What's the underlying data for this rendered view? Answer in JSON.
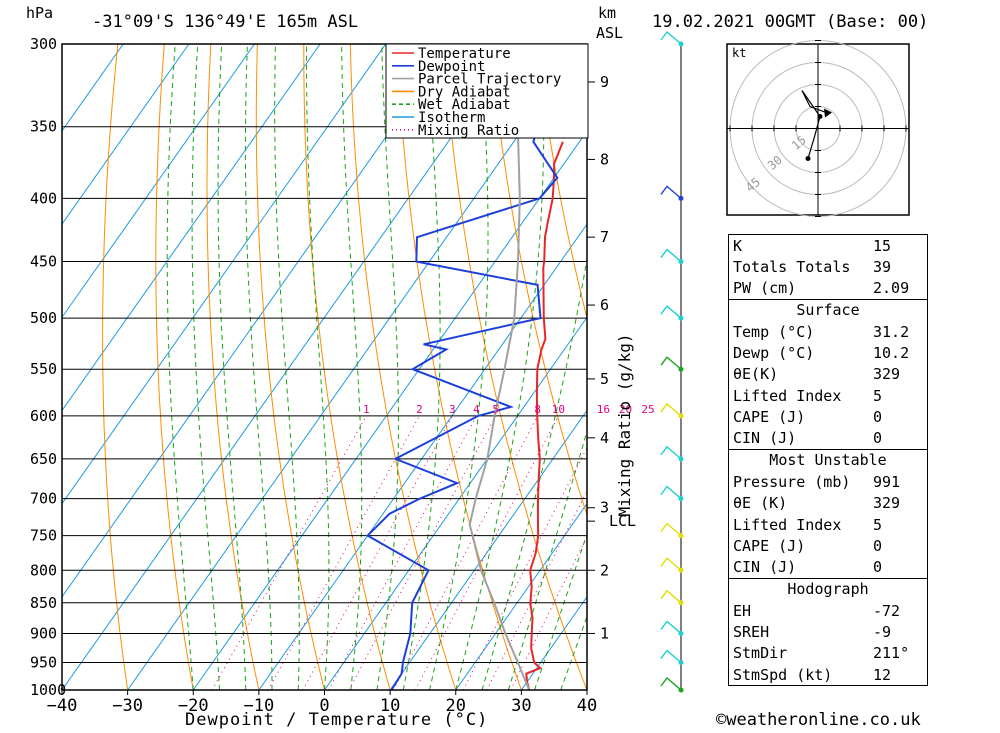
{
  "header": {
    "hpa_label": "hPa",
    "location": "-31°09'S  136°49'E  165m  ASL",
    "km_label": "km",
    "asl_label": "ASL",
    "datetime": "19.02.2021  00GMT  (Base: 00)"
  },
  "footer": {
    "copyright": "©weatheronline.co.uk"
  },
  "chart_data": {
    "type": "line",
    "title": "",
    "xlabel": "Dewpoint / Temperature (°C)",
    "ylabel": "hPa",
    "mixing_ratio_axis_label": "Mixing Ratio (g/kg)",
    "pressure_levels": [
      300,
      350,
      400,
      450,
      500,
      550,
      600,
      650,
      700,
      750,
      800,
      850,
      900,
      950,
      1000
    ],
    "pressure_tick_labels": [
      "300",
      "350",
      "400",
      "450",
      "500",
      "550",
      "600",
      "650",
      "700",
      "750",
      "800",
      "850",
      "900",
      "950",
      "1000"
    ],
    "temp_ticks": [
      -40,
      -30,
      -20,
      -10,
      0,
      10,
      20,
      30,
      40
    ],
    "temp_tick_labels": [
      "−40",
      "−30",
      "−20",
      "−10",
      "0",
      "10",
      "20",
      "30",
      "40"
    ],
    "xlim": [
      -40,
      40
    ],
    "ylim": [
      1000,
      300
    ],
    "skew_deg_per_log": 70,
    "km_ticks": [
      {
        "label": "1",
        "p": 900
      },
      {
        "label": "2",
        "p": 800
      },
      {
        "label": "3",
        "p": 712
      },
      {
        "label": "4",
        "p": 625
      },
      {
        "label": "5",
        "p": 560
      },
      {
        "label": "6",
        "p": 488
      },
      {
        "label": "7",
        "p": 430
      },
      {
        "label": "8",
        "p": 372
      },
      {
        "label": "9",
        "p": 322
      }
    ],
    "lcl": {
      "label": "LCL",
      "p": 730
    },
    "mixing_ratio_labels": [
      "1",
      "2",
      "3",
      "4",
      "5",
      "8",
      "10",
      "16",
      "20",
      "25"
    ],
    "mixing_ratio_values": [
      1,
      2,
      3,
      4,
      5,
      8,
      10,
      16,
      20,
      25
    ],
    "legend": [
      {
        "name": "Temperature",
        "color": "#e8262a",
        "style": "solid"
      },
      {
        "name": "Dewpoint",
        "color": "#1c3fdb",
        "style": "solid"
      },
      {
        "name": "Parcel Trajectory",
        "color": "#a0a0a0",
        "style": "solid"
      },
      {
        "name": "Dry Adiabat",
        "color": "#ff8c00",
        "style": "solid"
      },
      {
        "name": "Wet Adiabat",
        "color": "#1aa31a",
        "style": "dashed"
      },
      {
        "name": "Isotherm",
        "color": "#1e9be0",
        "style": "solid"
      },
      {
        "name": "Mixing Ratio",
        "color": "#e0007a",
        "style": "dotted"
      }
    ],
    "series": [
      {
        "name": "Temperature",
        "color": "#e8262a",
        "points": [
          [
            1000,
            31.2
          ],
          [
            985,
            30
          ],
          [
            970,
            29
          ],
          [
            960,
            30.5
          ],
          [
            950,
            29
          ],
          [
            925,
            27
          ],
          [
            900,
            25.5
          ],
          [
            875,
            24
          ],
          [
            850,
            22
          ],
          [
            825,
            20.5
          ],
          [
            800,
            18.5
          ],
          [
            775,
            17.5
          ],
          [
            750,
            16
          ],
          [
            725,
            14
          ],
          [
            700,
            12
          ],
          [
            675,
            10
          ],
          [
            650,
            8
          ],
          [
            625,
            5.5
          ],
          [
            600,
            3
          ],
          [
            575,
            0.5
          ],
          [
            550,
            -2
          ],
          [
            530,
            -3.5
          ],
          [
            520,
            -4
          ],
          [
            500,
            -6.5
          ],
          [
            475,
            -9.5
          ],
          [
            455,
            -12
          ],
          [
            450,
            -12.5
          ],
          [
            430,
            -15
          ],
          [
            420,
            -16
          ],
          [
            400,
            -18
          ],
          [
            385,
            -20
          ],
          [
            375,
            -21.5
          ],
          [
            360,
            -22.5
          ]
        ]
      },
      {
        "name": "Dewpoint",
        "color": "#1c3fdb",
        "points": [
          [
            1000,
            10.2
          ],
          [
            970,
            10
          ],
          [
            960,
            9.5
          ],
          [
            950,
            9
          ],
          [
            900,
            7
          ],
          [
            850,
            4
          ],
          [
            800,
            3
          ],
          [
            750,
            -10
          ],
          [
            720,
            -9
          ],
          [
            700,
            -6
          ],
          [
            680,
            -2
          ],
          [
            650,
            -14
          ],
          [
            600,
            -6
          ],
          [
            590,
            -2
          ],
          [
            550,
            -21
          ],
          [
            530,
            -18
          ],
          [
            525,
            -22
          ],
          [
            500,
            -7
          ],
          [
            470,
            -11
          ],
          [
            450,
            -32
          ],
          [
            430,
            -34.5
          ],
          [
            400,
            -20
          ],
          [
            385,
            -19.5
          ],
          [
            360,
            -27
          ],
          [
            340,
            -29
          ],
          [
            320,
            -30
          ],
          [
            300,
            -34
          ]
        ]
      },
      {
        "name": "Parcel Trajectory",
        "color": "#a0a0a0",
        "points": [
          [
            1000,
            31.2
          ],
          [
            950,
            26.5
          ],
          [
            900,
            21.5
          ],
          [
            850,
            16.5
          ],
          [
            800,
            11
          ],
          [
            750,
            6
          ],
          [
            735,
            4.4
          ],
          [
            700,
            2.5
          ],
          [
            650,
            0
          ],
          [
            600,
            -3.5
          ],
          [
            550,
            -7
          ],
          [
            500,
            -11
          ],
          [
            450,
            -16.5
          ],
          [
            400,
            -23
          ],
          [
            350,
            -31
          ],
          [
            300,
            -40
          ]
        ]
      }
    ]
  },
  "wind_profile": {
    "color_high": "#1ad1d1",
    "color_low": "#e0e000",
    "barbs": [
      {
        "p": 300,
        "color": "#1ad1d1"
      },
      {
        "p": 400,
        "color": "#1c3fdb"
      },
      {
        "p": 450,
        "color": "#1ad1d1"
      },
      {
        "p": 500,
        "color": "#1ad1d1"
      },
      {
        "p": 550,
        "color": "#1aa31a"
      },
      {
        "p": 600,
        "color": "#e0e000"
      },
      {
        "p": 650,
        "color": "#1ad1d1"
      },
      {
        "p": 700,
        "color": "#1ad1d1"
      },
      {
        "p": 750,
        "color": "#e0e000"
      },
      {
        "p": 800,
        "color": "#e0e000"
      },
      {
        "p": 850,
        "color": "#e0e000"
      },
      {
        "p": 900,
        "color": "#1ad1d1"
      },
      {
        "p": 950,
        "color": "#1ad1d1"
      },
      {
        "p": 1000,
        "color": "#1aa31a"
      }
    ]
  },
  "hodograph": {
    "unit_label": "kt",
    "ring_labels": [
      "15",
      "30",
      "45"
    ]
  },
  "indices": {
    "basic": [
      {
        "k": "K",
        "v": "15"
      },
      {
        "k": "Totals Totals",
        "v": "39"
      },
      {
        "k": "PW (cm)",
        "v": "2.09"
      }
    ],
    "surface": {
      "title": "Surface",
      "rows": [
        {
          "k": "Temp (°C)",
          "v": "31.2"
        },
        {
          "k": "Dewp (°C)",
          "v": "10.2"
        },
        {
          "k": "θE(K)",
          "v": "329"
        },
        {
          "k": "Lifted Index",
          "v": "5"
        },
        {
          "k": "CAPE (J)",
          "v": "0"
        },
        {
          "k": "CIN (J)",
          "v": "0"
        }
      ]
    },
    "most_unstable": {
      "title": "Most Unstable",
      "rows": [
        {
          "k": "Pressure (mb)",
          "v": "991"
        },
        {
          "k": "θE (K)",
          "v": "329"
        },
        {
          "k": "Lifted Index",
          "v": "5"
        },
        {
          "k": "CAPE (J)",
          "v": "0"
        },
        {
          "k": "CIN (J)",
          "v": "0"
        }
      ]
    },
    "hodograph": {
      "title": "Hodograph",
      "rows": [
        {
          "k": "EH",
          "v": "-72"
        },
        {
          "k": "SREH",
          "v": "-9"
        },
        {
          "k": "StmDir",
          "v": "211°"
        },
        {
          "k": "StmSpd (kt)",
          "v": "12"
        }
      ]
    }
  }
}
